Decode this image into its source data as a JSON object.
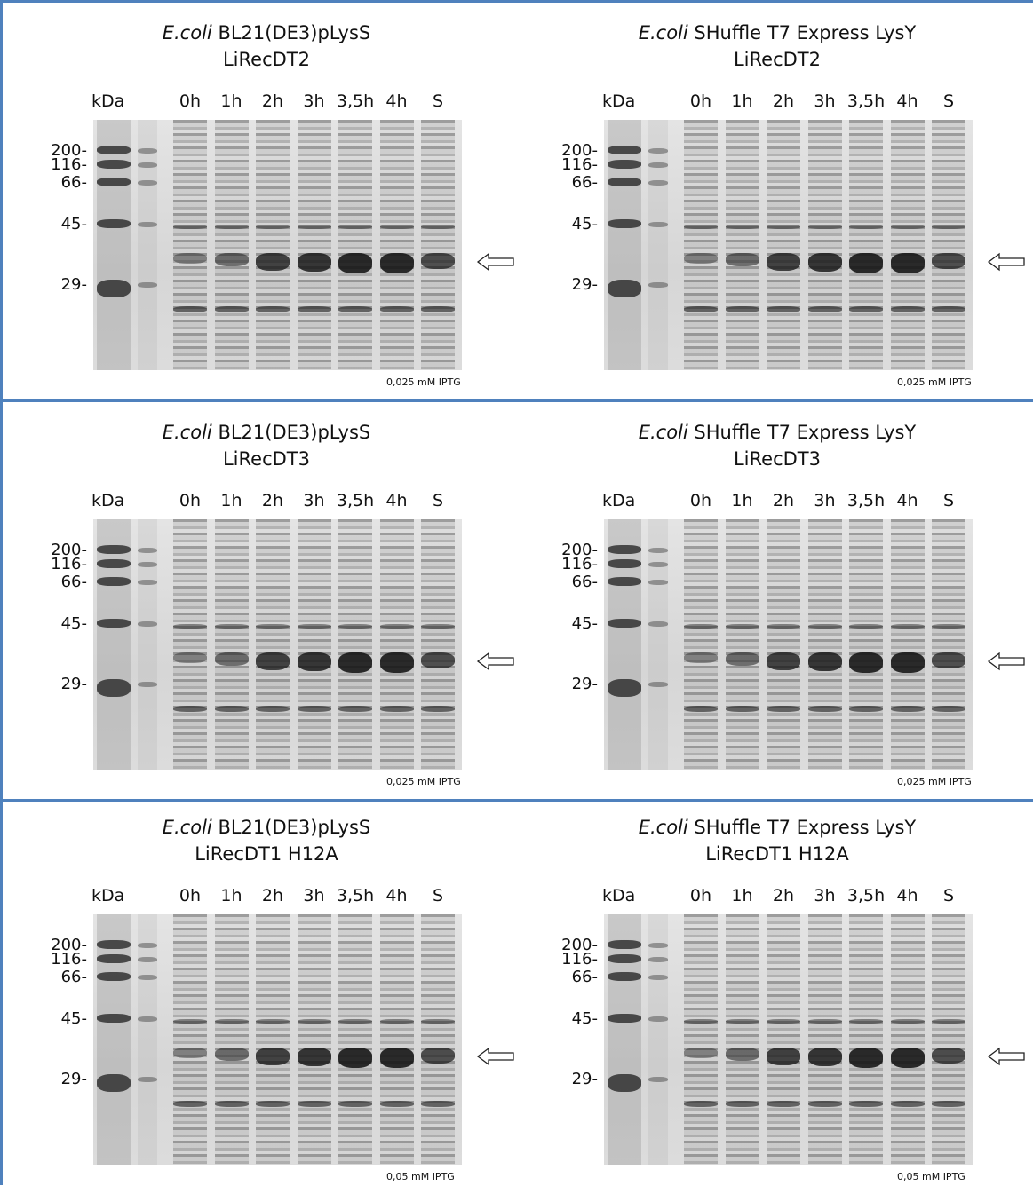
{
  "panels": [
    {
      "species": "E.coli",
      "strain": "BL21(DE3)pLysS",
      "protein": "LiRecDT2",
      "kda": "kDa",
      "lanes": [
        "0h",
        "1h",
        "2h",
        "3h",
        "3,5h",
        "4h",
        "S"
      ],
      "markers": [
        "200-",
        "116-",
        "66-",
        "45-",
        "29-"
      ],
      "note": "0,025 mM IPTG"
    },
    {
      "species": "E.coli",
      "strain": "SHuffle T7 Express LysY",
      "protein": "LiRecDT2",
      "kda": "kDa",
      "lanes": [
        "0h",
        "1h",
        "2h",
        "3h",
        "3,5h",
        "4h",
        "S"
      ],
      "markers": [
        "200-",
        "116-",
        "66-",
        "45-",
        "29-"
      ],
      "note": "0,025 mM IPTG"
    },
    {
      "species": "E.coli",
      "strain": "BL21(DE3)pLysS",
      "protein": "LiRecDT3",
      "kda": "kDa",
      "lanes": [
        "0h",
        "1h",
        "2h",
        "3h",
        "3,5h",
        "4h",
        "S"
      ],
      "markers": [
        "200-",
        "116-",
        "66-",
        "45-",
        "29-"
      ],
      "note": "0,025 mM IPTG"
    },
    {
      "species": "E.coli",
      "strain": "SHuffle T7 Express LysY",
      "protein": "LiRecDT3",
      "kda": "kDa",
      "lanes": [
        "0h",
        "1h",
        "2h",
        "3h",
        "3,5h",
        "4h",
        "S"
      ],
      "markers": [
        "200-",
        "116-",
        "66-",
        "45-",
        "29-"
      ],
      "note": "0,025 mM IPTG"
    },
    {
      "species": "E.coli",
      "strain": "BL21(DE3)pLysS",
      "protein": "LiRecDT1 H12A",
      "kda": "kDa",
      "lanes": [
        "0h",
        "1h",
        "2h",
        "3h",
        "3,5h",
        "4h",
        "S"
      ],
      "markers": [
        "200-",
        "116-",
        "66-",
        "45-",
        "29-"
      ],
      "note": "0,05 mM IPTG"
    },
    {
      "species": "E.coli",
      "strain": "SHuffle T7 Express LysY",
      "protein": "LiRecDT1 H12A",
      "kda": "kDa",
      "lanes": [
        "0h",
        "1h",
        "2h",
        "3h",
        "3,5h",
        "4h",
        "S"
      ],
      "markers": [
        "200-",
        "116-",
        "66-",
        "45-",
        "29-"
      ],
      "note": "0,05 mM IPTG"
    }
  ]
}
